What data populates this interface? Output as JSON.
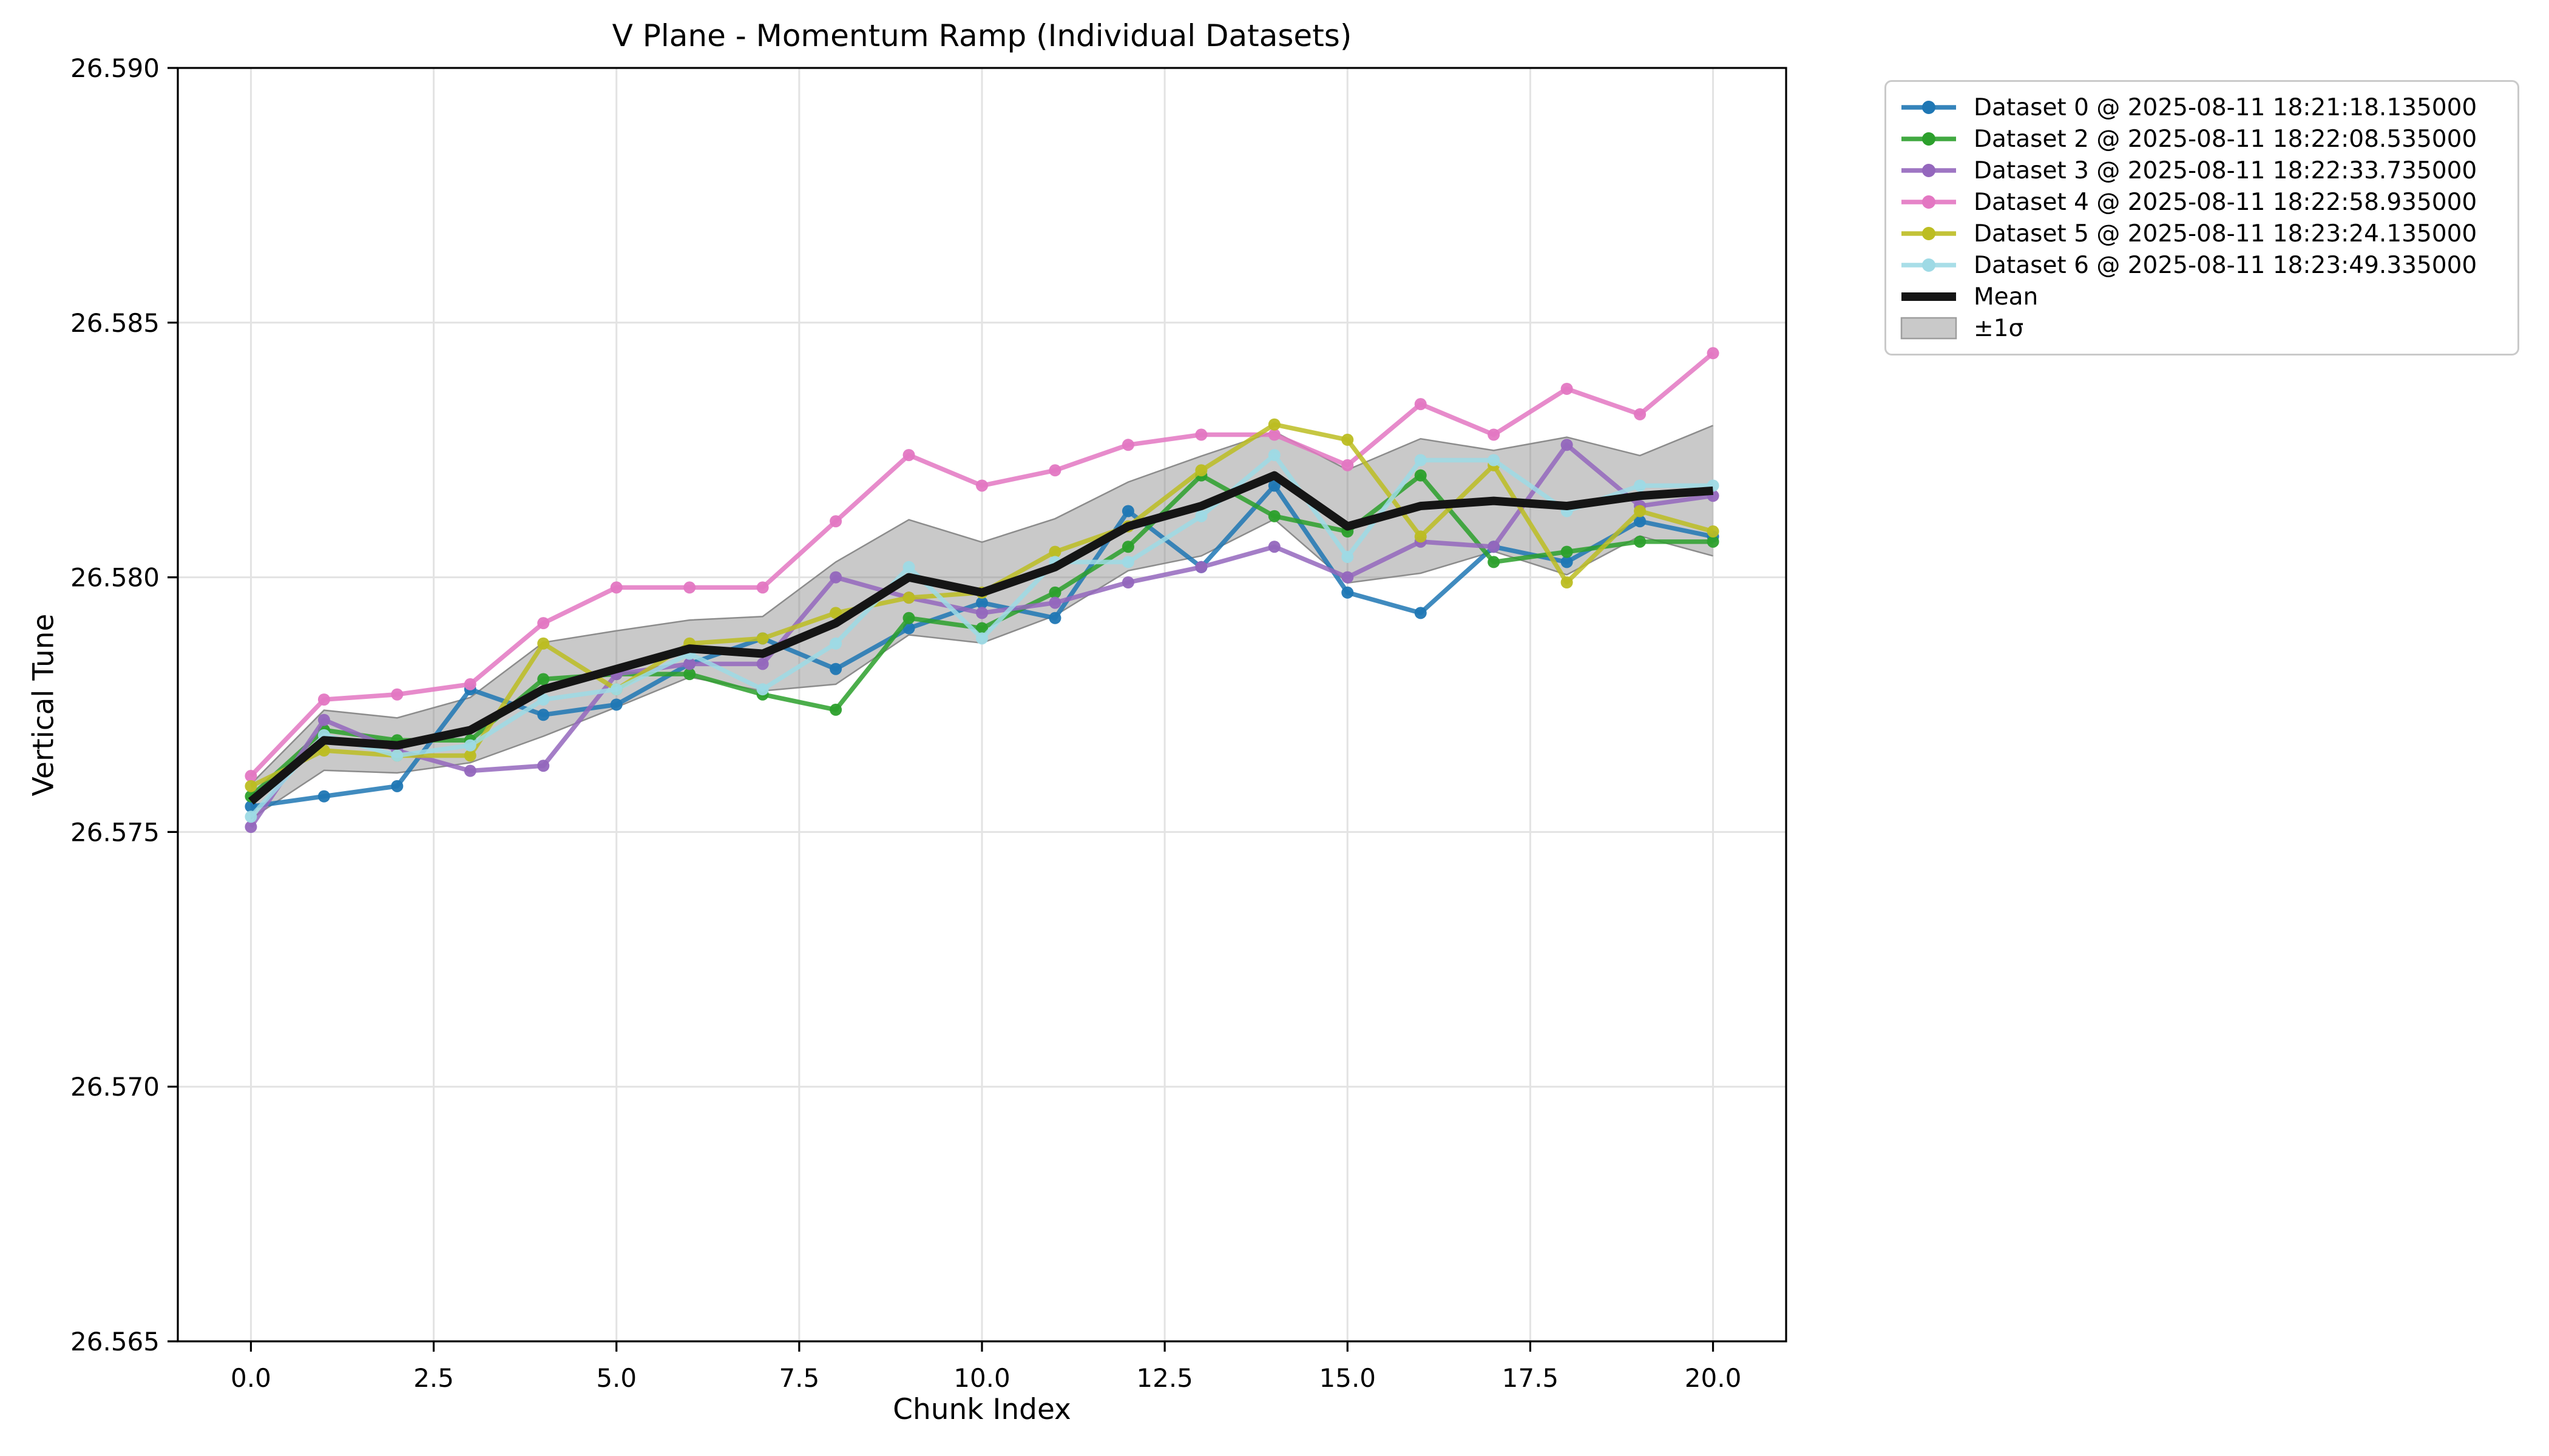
{
  "chart_data": {
    "type": "line",
    "title": "V Plane - Momentum Ramp (Individual Datasets)",
    "xlabel": "Chunk Index",
    "ylabel": "Vertical Tune",
    "xlim": [
      -1,
      21
    ],
    "ylim": [
      26.565,
      26.59
    ],
    "grid": true,
    "legend_position": "upper right, outside axes",
    "x_tick_labels": [
      "0.0",
      "2.5",
      "5.0",
      "7.5",
      "10.0",
      "12.5",
      "15.0",
      "17.5",
      "20.0"
    ],
    "y_tick_labels": [
      "26.590",
      "26.585",
      "26.580",
      "26.575",
      "26.570",
      "26.565"
    ],
    "x": [
      0,
      1,
      2,
      3,
      4,
      5,
      6,
      7,
      8,
      9,
      10,
      11,
      12,
      13,
      14,
      15,
      16,
      17,
      18,
      19,
      20
    ],
    "series": [
      {
        "name": "Dataset 0 @ 2025-08-11 18:21:18.135000",
        "color": "#1f77b4",
        "values": [
          26.5755,
          26.5757,
          26.5759,
          26.5778,
          26.5773,
          26.5775,
          26.5783,
          26.5788,
          26.5782,
          26.579,
          26.5795,
          26.5792,
          26.5813,
          26.5802,
          26.5818,
          26.5797,
          26.5793,
          26.5806,
          26.5803,
          26.5811,
          26.5808
        ]
      },
      {
        "name": "Dataset 2 @ 2025-08-11 18:22:08.535000",
        "color": "#2ca02c",
        "values": [
          26.5757,
          26.577,
          26.5768,
          26.5768,
          26.578,
          26.5781,
          26.5781,
          26.5777,
          26.5774,
          26.5792,
          26.579,
          26.5797,
          26.5806,
          26.582,
          26.5812,
          26.5809,
          26.582,
          26.5803,
          26.5805,
          26.5807,
          26.5807
        ]
      },
      {
        "name": "Dataset 3 @ 2025-08-11 18:22:33.735000",
        "color": "#9467bd",
        "values": [
          26.5751,
          26.5772,
          26.5766,
          26.5762,
          26.5763,
          26.5781,
          26.5783,
          26.5783,
          26.58,
          26.5796,
          26.5793,
          26.5795,
          26.5799,
          26.5802,
          26.5806,
          26.58,
          26.5807,
          26.5806,
          26.5826,
          26.5814,
          26.5816
        ]
      },
      {
        "name": "Dataset 4 @ 2025-08-11 18:22:58.935000",
        "color": "#e377c2",
        "values": [
          26.5761,
          26.5776,
          26.5777,
          26.5779,
          26.5791,
          26.5798,
          26.5798,
          26.5798,
          26.5811,
          26.5824,
          26.5818,
          26.5821,
          26.5826,
          26.5828,
          26.5828,
          26.5822,
          26.5834,
          26.5828,
          26.5837,
          26.5832,
          26.5844
        ]
      },
      {
        "name": "Dataset 5 @ 2025-08-11 18:23:24.135000",
        "color": "#bcbd22",
        "values": [
          26.5759,
          26.5766,
          26.5765,
          26.5765,
          26.5787,
          26.5778,
          26.5787,
          26.5788,
          26.5793,
          26.5796,
          26.5797,
          26.5805,
          26.581,
          26.5821,
          26.583,
          26.5827,
          26.5808,
          26.5822,
          26.5799,
          26.5813,
          26.5809
        ]
      },
      {
        "name": "Dataset 6 @ 2025-08-11 18:23:49.335000",
        "color": "#9edae5",
        "values": [
          26.5753,
          26.5769,
          26.5765,
          26.5767,
          26.5776,
          26.5778,
          26.5785,
          26.5778,
          26.5787,
          26.5802,
          26.5788,
          26.5803,
          26.5803,
          26.5812,
          26.5824,
          26.5804,
          26.5823,
          26.5823,
          26.5813,
          26.5818,
          26.5818
        ]
      }
    ],
    "mean": {
      "name": "Mean",
      "color": "#151515",
      "values": [
        26.5756,
        26.5768,
        26.5767,
        26.577,
        26.5778,
        26.5782,
        26.5786,
        26.5785,
        26.5791,
        26.58,
        26.5797,
        26.5802,
        26.581,
        26.5814,
        26.582,
        26.581,
        26.5814,
        26.5815,
        26.5814,
        26.5816,
        26.5817
      ]
    },
    "sigma_band": {
      "name": "±1σ",
      "sigma": [
        0.00034,
        0.00059,
        0.00054,
        0.00064,
        0.00092,
        0.00075,
        0.00056,
        0.00073,
        0.0012,
        0.00113,
        0.00099,
        0.00095,
        0.00087,
        0.00098,
        0.00086,
        0.00111,
        0.00132,
        0.00099,
        0.00135,
        0.00079,
        0.00128
      ],
      "fill": "#7f7f7f",
      "fill_alpha": 0.42,
      "edge": "#8c8c8c"
    },
    "colors": {
      "grid": "#e3e3e3",
      "spine": "#000000",
      "background": "#ffffff"
    },
    "legend": [
      {
        "label": "Dataset 0 @ 2025-08-11 18:21:18.135000",
        "color": "#1f77b4",
        "swatch": "marker"
      },
      {
        "label": "Dataset 2 @ 2025-08-11 18:22:08.535000",
        "color": "#2ca02c",
        "swatch": "marker"
      },
      {
        "label": "Dataset 3 @ 2025-08-11 18:22:33.735000",
        "color": "#9467bd",
        "swatch": "marker"
      },
      {
        "label": "Dataset 4 @ 2025-08-11 18:22:58.935000",
        "color": "#e377c2",
        "swatch": "marker"
      },
      {
        "label": "Dataset 5 @ 2025-08-11 18:23:24.135000",
        "color": "#bcbd22",
        "swatch": "marker"
      },
      {
        "label": "Dataset 6 @ 2025-08-11 18:23:49.335000",
        "color": "#9edae5",
        "swatch": "marker"
      },
      {
        "label": "Mean",
        "color": "#151515",
        "swatch": "line"
      },
      {
        "label": "±1σ",
        "color": "#c9c9c9",
        "edge": "#9e9e9e",
        "swatch": "patch"
      }
    ]
  }
}
